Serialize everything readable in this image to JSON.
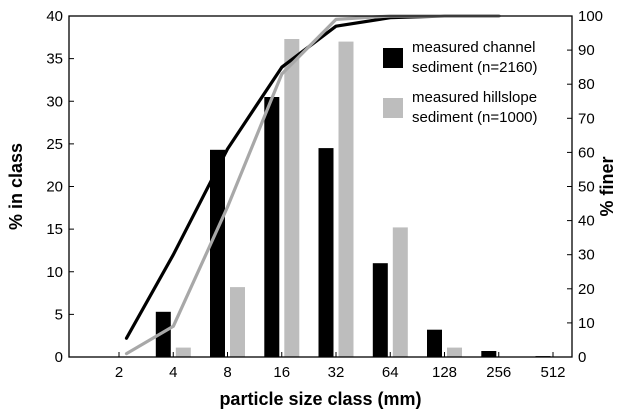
{
  "chart_data": {
    "type": "bar",
    "title": "",
    "xlabel": "particle size class (mm)",
    "ylabel": "% in class",
    "y2label": "% finer",
    "categories": [
      "2",
      "4",
      "8",
      "16",
      "32",
      "64",
      "128",
      "256",
      "512"
    ],
    "ylim": [
      0,
      40
    ],
    "y2lim": [
      0,
      100
    ],
    "yticks": [
      0,
      5,
      10,
      15,
      20,
      25,
      30,
      35,
      40
    ],
    "y2ticks": [
      0,
      10,
      20,
      30,
      40,
      50,
      60,
      70,
      80,
      90,
      100
    ],
    "series": [
      {
        "name": "measured channel sediment (n=2160)",
        "legend_lines": [
          "measured channel",
          "sediment (n=2160)"
        ],
        "type": "bar",
        "axis": "left",
        "color": "#000000",
        "values": [
          0,
          5.3,
          24.3,
          30.5,
          24.5,
          11.0,
          3.2,
          0.7,
          0.1
        ]
      },
      {
        "name": "measured hillslope sediment (n=1000)",
        "legend_lines": [
          "measured hillslope",
          "sediment (n=1000)"
        ],
        "type": "bar",
        "axis": "left",
        "color": "#bdbdbd",
        "values": [
          0,
          1.1,
          8.2,
          37.3,
          37.0,
          15.2,
          1.1,
          0,
          0
        ]
      },
      {
        "name": "channel % finer",
        "type": "line",
        "axis": "right",
        "color": "#000000",
        "x": [
          2.2,
          4,
          8,
          16,
          32,
          64,
          128,
          256
        ],
        "values": [
          5.5,
          30,
          61,
          85,
          97,
          99.5,
          100,
          100
        ]
      },
      {
        "name": "hillslope % finer",
        "type": "line",
        "axis": "right",
        "color": "#a8a8a8",
        "x": [
          2.2,
          4,
          8,
          16,
          32,
          64,
          128,
          256
        ],
        "values": [
          1,
          9,
          44,
          83,
          99,
          100,
          100,
          100
        ]
      }
    ],
    "legend_position": "top-right",
    "grid": false
  }
}
